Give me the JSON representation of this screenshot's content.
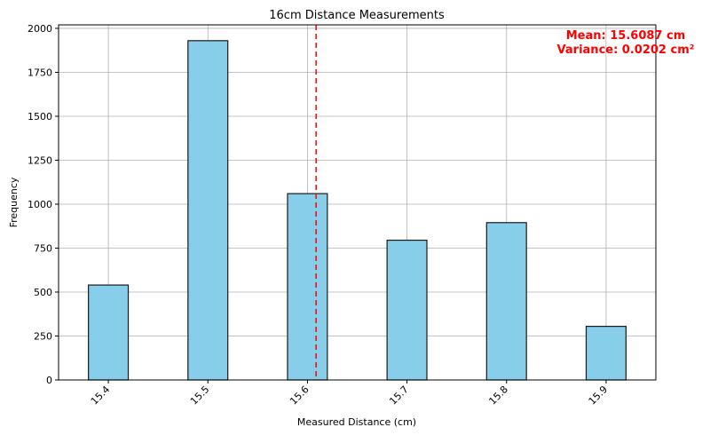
{
  "chart_data": {
    "type": "bar",
    "title": "16cm Distance Measurements",
    "xlabel": "Measured Distance (cm)",
    "ylabel": "Frequency",
    "categories": [
      "15.4",
      "15.5",
      "15.6",
      "15.7",
      "15.8",
      "15.9"
    ],
    "x": [
      15.4,
      15.5,
      15.6,
      15.7,
      15.8,
      15.9
    ],
    "values": [
      540,
      1930,
      1060,
      795,
      895,
      305
    ],
    "xlim": [
      15.35,
      15.95
    ],
    "ylim": [
      0,
      2020
    ],
    "yticks": [
      0,
      250,
      500,
      750,
      1000,
      1250,
      1500,
      1750,
      2000
    ],
    "bar_width": 0.04,
    "mean_line": 15.6087,
    "grid": true,
    "annotations": [
      "Mean: 15.6087 cm",
      "Variance: 0.0202 cm²"
    ],
    "colors": {
      "bar_fill": "#87CEEB",
      "bar_edge": "#1a1a1a",
      "mean_line": "#ff0000",
      "grid": "#b0b0b0"
    }
  }
}
